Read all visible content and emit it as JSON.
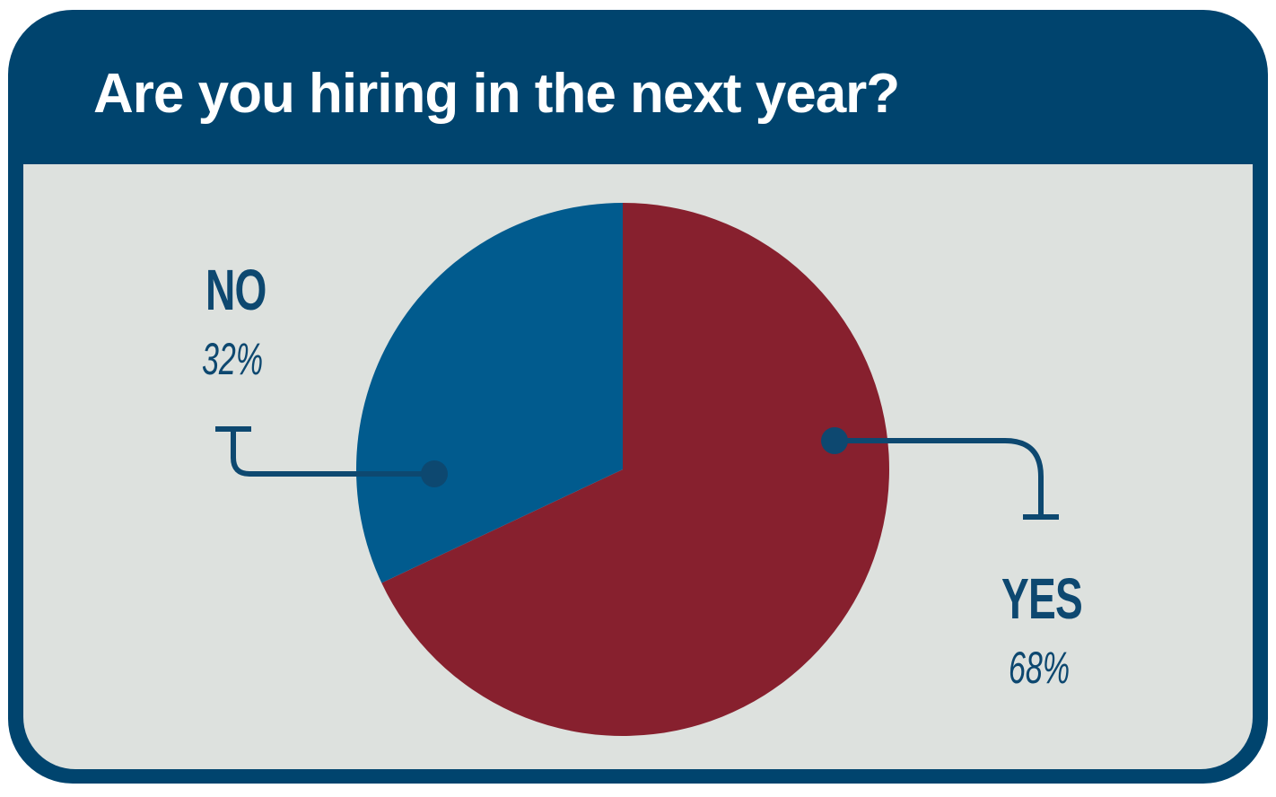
{
  "title": "Are you hiring in the next year?",
  "colors": {
    "header_bg": "#00446e",
    "panel_bg": "#dde1de",
    "yes_slice": "#87202e",
    "no_slice": "#015b8e",
    "label_text": "#0d4870"
  },
  "chart_data": {
    "type": "pie",
    "title": "Are you hiring in the next year?",
    "slices": [
      {
        "label": "YES",
        "value": 68,
        "display": "68%"
      },
      {
        "label": "NO",
        "value": 32,
        "display": "32%"
      }
    ],
    "start_angle_deg": 0,
    "direction": "clockwise",
    "legend": "none"
  }
}
